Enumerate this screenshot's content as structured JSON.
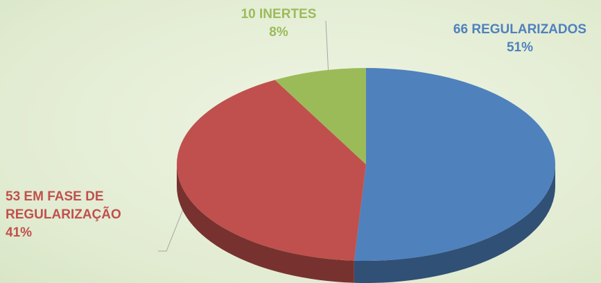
{
  "chart_data": {
    "type": "pie3d",
    "categories": [
      "REGULARIZADOS",
      "EM FASE DE REGULARIZAÇÃO",
      "INERTES"
    ],
    "counts": [
      66,
      53,
      10
    ],
    "values": [
      51,
      41,
      8
    ],
    "value_labels": [
      "51%",
      "41%",
      "8%"
    ],
    "colors": [
      "#4f81bd",
      "#c0504d",
      "#9bbb59"
    ]
  }
}
